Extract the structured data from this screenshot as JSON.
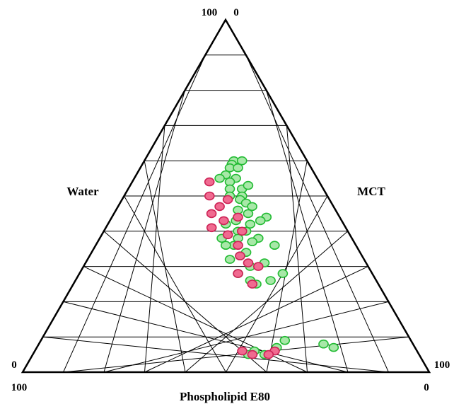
{
  "chart_data": {
    "type": "scatter",
    "plot_kind": "ternary",
    "title": "",
    "components": {
      "bottom": "Phospholipid E80",
      "left": "Water",
      "right": "MCT"
    },
    "corner_ticks": {
      "top_left": "100",
      "top_right": "0",
      "bottom_left_side": "0",
      "bottom_left_base": "100",
      "bottom_right_side": "100",
      "bottom_right_base": "0"
    },
    "grid": true,
    "grid_step": 10,
    "series": [
      {
        "color": "#22bb33",
        "fill": "#a8e8a8",
        "points": [
          [
            60,
            18,
            22
          ],
          [
            59,
            19,
            22
          ],
          [
            58,
            20,
            22
          ],
          [
            58,
            18,
            24
          ],
          [
            60,
            16,
            24
          ],
          [
            56,
            22,
            22
          ],
          [
            55,
            20,
            25
          ],
          [
            54,
            22,
            24
          ],
          [
            55,
            24,
            21
          ],
          [
            52,
            20,
            28
          ],
          [
            53,
            18,
            29
          ],
          [
            52,
            23,
            25
          ],
          [
            50,
            21,
            29
          ],
          [
            50,
            24,
            26
          ],
          [
            49,
            22,
            29
          ],
          [
            48,
            21,
            31
          ],
          [
            46,
            24,
            30
          ],
          [
            47,
            20,
            33
          ],
          [
            45,
            22,
            33
          ],
          [
            44,
            18,
            38
          ],
          [
            43,
            20,
            37
          ],
          [
            42,
            23,
            35
          ],
          [
            43,
            26,
            31
          ],
          [
            42,
            29,
            29
          ],
          [
            40,
            27,
            33
          ],
          [
            38,
            23,
            39
          ],
          [
            37,
            25,
            38
          ],
          [
            38,
            28,
            34
          ],
          [
            36,
            30,
            34
          ],
          [
            36,
            20,
            44
          ],
          [
            33,
            30,
            37
          ],
          [
            34,
            28,
            38
          ],
          [
            31,
            25,
            44
          ],
          [
            30,
            29,
            41
          ],
          [
            28,
            22,
            50
          ],
          [
            28,
            33,
            39
          ],
          [
            26,
            31,
            43
          ],
          [
            25,
            30,
            45
          ],
          [
            26,
            26,
            48
          ],
          [
            38,
            32,
            30
          ],
          [
            36,
            32,
            32
          ],
          [
            8,
            22,
            70
          ],
          [
            7,
            20,
            73
          ],
          [
            7,
            34,
            59
          ],
          [
            9,
            31,
            60
          ],
          [
            5,
            38,
            57
          ],
          [
            6,
            40,
            54
          ],
          [
            5,
            42,
            53
          ],
          [
            32,
            33,
            35
          ],
          [
            40,
            25,
            35
          ]
        ]
      },
      {
        "color": "#cc2255",
        "fill": "#f06a90",
        "points": [
          [
            54,
            27,
            19
          ],
          [
            50,
            29,
            21
          ],
          [
            49,
            25,
            26
          ],
          [
            47,
            28,
            25
          ],
          [
            45,
            31,
            24
          ],
          [
            44,
            25,
            31
          ],
          [
            43,
            29,
            28
          ],
          [
            41,
            33,
            26
          ],
          [
            40,
            26,
            34
          ],
          [
            39,
            30,
            31
          ],
          [
            36,
            29,
            35
          ],
          [
            33,
            30,
            37
          ],
          [
            30,
            27,
            43
          ],
          [
            28,
            33,
            39
          ],
          [
            25,
            31,
            44
          ],
          [
            31,
            29,
            40
          ],
          [
            6,
            35,
            59
          ],
          [
            5,
            37,
            58
          ],
          [
            5,
            41,
            54
          ],
          [
            6,
            43,
            51
          ]
        ]
      }
    ]
  }
}
